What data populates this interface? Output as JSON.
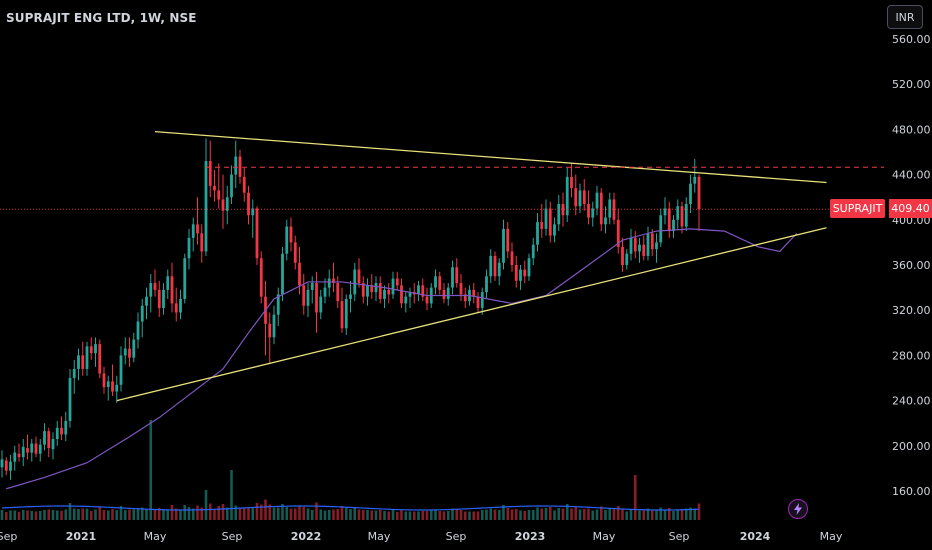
{
  "header": {
    "title": "SUPRAJIT ENG LTD, 1W, NSE"
  },
  "currency_button": {
    "label": "INR"
  },
  "last_price": {
    "ticker": "SUPRAJIT",
    "value": "409.40"
  },
  "colors": {
    "up": "#26a69a",
    "down": "#f23645",
    "trendline": "#e8e07a",
    "ma": "#7e57c2",
    "resistance": "#f23645",
    "volume_ma": "#2962ff"
  },
  "icons": {
    "alert": "lightning-icon"
  },
  "chart_data": {
    "type": "candlestick",
    "x_axis": {
      "tick_labels": [
        "Sep",
        "2021",
        "May",
        "Sep",
        "2022",
        "May",
        "Sep",
        "2023",
        "May",
        "Sep",
        "2024",
        "May"
      ]
    },
    "y_axis": {
      "tick_labels": [
        "560.00",
        "520.00",
        "480.00",
        "440.00",
        "400.00",
        "360.00",
        "320.00",
        "280.00",
        "240.00",
        "200.00",
        "160.00"
      ],
      "ylim": [
        125,
        565
      ],
      "position": "right"
    },
    "grid": false,
    "overlays": {
      "moving_average_keypoints": [
        [
          1,
          162
        ],
        [
          10,
          172
        ],
        [
          20,
          185
        ],
        [
          30,
          208
        ],
        [
          37,
          225
        ],
        [
          44,
          245
        ],
        [
          52,
          268
        ],
        [
          58,
          300
        ],
        [
          64,
          330
        ],
        [
          72,
          345
        ],
        [
          80,
          345
        ],
        [
          90,
          340
        ],
        [
          100,
          333
        ],
        [
          110,
          333
        ],
        [
          120,
          326
        ],
        [
          128,
          333
        ],
        [
          138,
          360
        ],
        [
          146,
          382
        ],
        [
          154,
          390
        ],
        [
          162,
          392
        ],
        [
          170,
          390
        ],
        [
          178,
          376
        ],
        [
          183,
          372
        ],
        [
          187,
          388
        ]
      ],
      "upper_trendline": {
        "from": [
          36,
          478
        ],
        "to": [
          194,
          433
        ]
      },
      "lower_trendline": {
        "from": [
          27,
          240
        ],
        "to": [
          194,
          393
        ]
      },
      "resistance_level": 446.5,
      "last_price_level": 409.4
    },
    "candles_ohlc": [
      [
        181,
        196,
        172,
        188
      ],
      [
        187,
        190,
        174,
        178
      ],
      [
        178,
        192,
        170,
        186
      ],
      [
        186,
        200,
        178,
        194
      ],
      [
        193,
        202,
        186,
        190
      ],
      [
        190,
        206,
        182,
        199
      ],
      [
        198,
        210,
        188,
        194
      ],
      [
        194,
        206,
        186,
        202
      ],
      [
        202,
        208,
        190,
        193
      ],
      [
        193,
        206,
        186,
        201
      ],
      [
        201,
        220,
        196,
        213
      ],
      [
        213,
        216,
        190,
        198
      ],
      [
        197,
        212,
        188,
        206
      ],
      [
        206,
        222,
        200,
        216
      ],
      [
        216,
        226,
        205,
        210
      ],
      [
        210,
        230,
        204,
        222
      ],
      [
        222,
        268,
        216,
        260
      ],
      [
        260,
        276,
        246,
        268
      ],
      [
        268,
        286,
        258,
        280
      ],
      [
        280,
        292,
        262,
        268
      ],
      [
        268,
        292,
        262,
        288
      ],
      [
        288,
        296,
        276,
        282
      ],
      [
        282,
        296,
        270,
        290
      ],
      [
        290,
        294,
        260,
        264
      ],
      [
        264,
        270,
        246,
        252
      ],
      [
        252,
        262,
        240,
        257
      ],
      [
        257,
        272,
        244,
        248
      ],
      [
        248,
        262,
        238,
        254
      ],
      [
        254,
        288,
        248,
        280
      ],
      [
        280,
        296,
        272,
        286
      ],
      [
        286,
        296,
        270,
        278
      ],
      [
        278,
        300,
        274,
        294
      ],
      [
        294,
        318,
        286,
        310
      ],
      [
        310,
        330,
        296,
        324
      ],
      [
        324,
        340,
        312,
        332
      ],
      [
        332,
        352,
        318,
        344
      ],
      [
        344,
        356,
        332,
        338
      ],
      [
        338,
        346,
        314,
        322
      ],
      [
        322,
        344,
        316,
        338
      ],
      [
        338,
        356,
        330,
        350
      ],
      [
        350,
        362,
        318,
        326
      ],
      [
        326,
        340,
        310,
        318
      ],
      [
        318,
        338,
        312,
        330
      ],
      [
        330,
        370,
        326,
        366
      ],
      [
        366,
        392,
        356,
        384
      ],
      [
        384,
        402,
        372,
        396
      ],
      [
        396,
        420,
        378,
        388
      ],
      [
        388,
        396,
        362,
        372
      ],
      [
        372,
        472,
        368,
        452
      ],
      [
        452,
        470,
        420,
        430
      ],
      [
        430,
        444,
        416,
        426
      ],
      [
        426,
        450,
        410,
        418
      ],
      [
        418,
        440,
        392,
        408
      ],
      [
        408,
        430,
        396,
        420
      ],
      [
        420,
        448,
        414,
        440
      ],
      [
        440,
        470,
        428,
        456
      ],
      [
        456,
        462,
        432,
        438
      ],
      [
        438,
        446,
        416,
        424
      ],
      [
        424,
        430,
        396,
        404
      ],
      [
        404,
        418,
        384,
        410
      ],
      [
        410,
        412,
        360,
        366
      ],
      [
        366,
        372,
        326,
        332
      ],
      [
        332,
        346,
        280,
        308
      ],
      [
        308,
        318,
        272,
        296
      ],
      [
        296,
        324,
        290,
        316
      ],
      [
        316,
        340,
        306,
        334
      ],
      [
        334,
        376,
        328,
        370
      ],
      [
        370,
        400,
        364,
        394
      ],
      [
        394,
        402,
        372,
        380
      ],
      [
        380,
        386,
        356,
        362
      ],
      [
        362,
        376,
        334,
        342
      ],
      [
        342,
        352,
        316,
        324
      ],
      [
        324,
        344,
        314,
        338
      ],
      [
        338,
        350,
        326,
        344
      ],
      [
        344,
        354,
        300,
        318
      ],
      [
        318,
        338,
        312,
        332
      ],
      [
        332,
        348,
        326,
        340
      ],
      [
        340,
        356,
        332,
        348
      ],
      [
        348,
        362,
        336,
        344
      ],
      [
        344,
        350,
        322,
        328
      ],
      [
        328,
        340,
        300,
        304
      ],
      [
        304,
        334,
        298,
        330
      ],
      [
        330,
        346,
        318,
        334
      ],
      [
        334,
        362,
        328,
        356
      ],
      [
        356,
        366,
        340,
        344
      ],
      [
        344,
        350,
        326,
        332
      ],
      [
        332,
        348,
        324,
        342
      ],
      [
        342,
        352,
        330,
        336
      ],
      [
        336,
        350,
        328,
        344
      ],
      [
        344,
        350,
        326,
        330
      ],
      [
        330,
        342,
        322,
        338
      ],
      [
        338,
        344,
        326,
        334
      ],
      [
        334,
        354,
        330,
        348
      ],
      [
        348,
        354,
        338,
        342
      ],
      [
        342,
        348,
        322,
        326
      ],
      [
        326,
        336,
        318,
        332
      ],
      [
        332,
        340,
        322,
        336
      ],
      [
        336,
        344,
        326,
        334
      ],
      [
        334,
        346,
        328,
        342
      ],
      [
        342,
        348,
        328,
        332
      ],
      [
        332,
        340,
        320,
        326
      ],
      [
        326,
        344,
        322,
        340
      ],
      [
        340,
        356,
        334,
        350
      ],
      [
        350,
        354,
        334,
        338
      ],
      [
        338,
        344,
        326,
        330
      ],
      [
        330,
        344,
        324,
        340
      ],
      [
        340,
        364,
        334,
        358
      ],
      [
        358,
        366,
        340,
        344
      ],
      [
        344,
        352,
        328,
        334
      ],
      [
        334,
        340,
        322,
        328
      ],
      [
        328,
        342,
        324,
        338
      ],
      [
        338,
        344,
        326,
        332
      ],
      [
        332,
        336,
        318,
        322
      ],
      [
        322,
        340,
        316,
        336
      ],
      [
        336,
        356,
        330,
        350
      ],
      [
        350,
        374,
        344,
        368
      ],
      [
        368,
        372,
        346,
        350
      ],
      [
        350,
        366,
        342,
        362
      ],
      [
        362,
        400,
        356,
        392
      ],
      [
        392,
        398,
        366,
        372
      ],
      [
        372,
        380,
        354,
        360
      ],
      [
        360,
        368,
        340,
        346
      ],
      [
        346,
        360,
        338,
        356
      ],
      [
        356,
        364,
        344,
        350
      ],
      [
        350,
        370,
        346,
        366
      ],
      [
        366,
        384,
        360,
        378
      ],
      [
        378,
        406,
        372,
        398
      ],
      [
        398,
        414,
        384,
        392
      ],
      [
        392,
        418,
        386,
        410
      ],
      [
        410,
        416,
        380,
        386
      ],
      [
        386,
        402,
        380,
        396
      ],
      [
        396,
        422,
        390,
        414
      ],
      [
        414,
        424,
        394,
        404
      ],
      [
        404,
        446,
        398,
        438
      ],
      [
        438,
        450,
        420,
        428
      ],
      [
        428,
        440,
        404,
        412
      ],
      [
        412,
        432,
        406,
        426
      ],
      [
        426,
        436,
        408,
        414
      ],
      [
        414,
        426,
        396,
        402
      ],
      [
        402,
        416,
        394,
        410
      ],
      [
        410,
        430,
        404,
        424
      ],
      [
        424,
        428,
        390,
        396
      ],
      [
        396,
        412,
        388,
        402
      ],
      [
        402,
        424,
        396,
        418
      ],
      [
        418,
        424,
        396,
        400
      ],
      [
        400,
        410,
        370,
        376
      ],
      [
        376,
        384,
        354,
        360
      ],
      [
        360,
        374,
        356,
        370
      ],
      [
        370,
        392,
        364,
        384
      ],
      [
        384,
        390,
        366,
        372
      ],
      [
        372,
        384,
        362,
        378
      ],
      [
        378,
        386,
        364,
        368
      ],
      [
        368,
        394,
        364,
        388
      ],
      [
        388,
        392,
        368,
        374
      ],
      [
        374,
        388,
        362,
        380
      ],
      [
        380,
        410,
        376,
        404
      ],
      [
        404,
        420,
        396,
        410
      ],
      [
        410,
        416,
        384,
        390
      ],
      [
        390,
        404,
        384,
        400
      ],
      [
        400,
        418,
        392,
        412
      ],
      [
        412,
        416,
        388,
        394
      ],
      [
        394,
        420,
        390,
        414
      ],
      [
        414,
        440,
        406,
        432
      ],
      [
        432,
        454,
        424,
        438
      ],
      [
        438,
        440,
        390,
        409.4
      ]
    ],
    "volume_spikes": [
      [
        35,
        9
      ],
      [
        54,
        4
      ],
      [
        149,
        4.5
      ],
      [
        179,
        3
      ],
      [
        187,
        1.6
      ]
    ]
  }
}
